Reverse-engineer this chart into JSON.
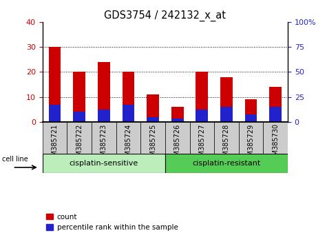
{
  "title": "GDS3754 / 242132_x_at",
  "categories": [
    "GSM385721",
    "GSM385722",
    "GSM385723",
    "GSM385724",
    "GSM385725",
    "GSM385726",
    "GSM385727",
    "GSM385728",
    "GSM385729",
    "GSM385730"
  ],
  "count_values": [
    30,
    20,
    24,
    20,
    11,
    6,
    20,
    18,
    9,
    14
  ],
  "percentile_values": [
    7,
    4,
    5,
    7,
    2,
    1.5,
    5,
    6,
    3,
    6
  ],
  "bar_color_red": "#CC0000",
  "bar_color_blue": "#2222CC",
  "ylim_left": [
    0,
    40
  ],
  "ylim_right": [
    0,
    100
  ],
  "yticks_left": [
    0,
    10,
    20,
    30,
    40
  ],
  "ytick_labels_left": [
    "0",
    "10",
    "20",
    "30",
    "40"
  ],
  "yticks_right": [
    0,
    25,
    50,
    75,
    100
  ],
  "ytick_labels_right": [
    "0",
    "25",
    "50",
    "75",
    "100%"
  ],
  "background_color": "#ffffff",
  "xtick_bg_color": "#cccccc",
  "cell_line_label": "cell line",
  "group1_label": "cisplatin-sensitive",
  "group2_label": "cisplatin-resistant",
  "group1_color": "#bbeebb",
  "group2_color": "#55cc55",
  "legend_count": "count",
  "legend_percentile": "percentile rank within the sample",
  "bar_width": 0.5,
  "tick_label_fontsize": 7,
  "title_fontsize": 10.5,
  "axis_label_fontsize": 8,
  "group_fontsize": 8,
  "legend_fontsize": 7.5
}
